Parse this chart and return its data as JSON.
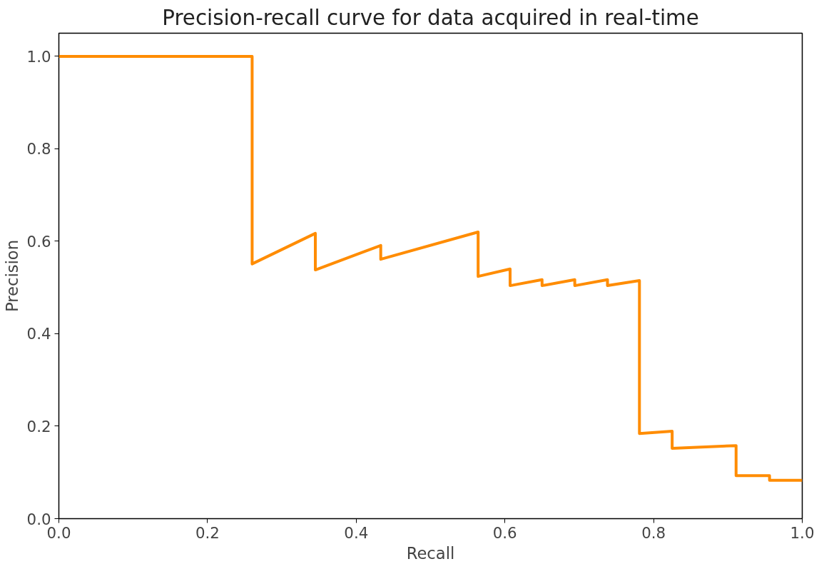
{
  "chart_data": {
    "type": "line",
    "title": "Precision-recall curve for data acquired in real-time",
    "xlabel": "Recall",
    "ylabel": "Precision",
    "x": [
      0.0,
      0.26,
      0.26,
      0.345,
      0.345,
      0.433,
      0.433,
      0.564,
      0.564,
      0.607,
      0.607,
      0.65,
      0.65,
      0.694,
      0.694,
      0.738,
      0.738,
      0.781,
      0.781,
      0.825,
      0.825,
      0.911,
      0.911,
      0.956,
      0.956,
      1.0
    ],
    "series": [
      {
        "color": "#ff8c00",
        "values": [
          1.0,
          1.0,
          0.551,
          0.617,
          0.538,
          0.591,
          0.561,
          0.62,
          0.524,
          0.54,
          0.504,
          0.517,
          0.504,
          0.517,
          0.504,
          0.517,
          0.504,
          0.515,
          0.184,
          0.189,
          0.152,
          0.158,
          0.093,
          0.093,
          0.083,
          0.083
        ]
      }
    ],
    "xlim": [
      0.0,
      1.0
    ],
    "ylim": [
      0.0,
      1.05
    ],
    "xticks": [
      {
        "value": 0,
        "label": "0.0"
      },
      0.2,
      0.4,
      0.6,
      0.8,
      {
        "value": 1,
        "label": "1.0"
      }
    ],
    "yticks": [
      {
        "value": 0,
        "label": "0.0"
      },
      0.2,
      0.4,
      0.6,
      0.8,
      {
        "value": 1,
        "label": "1.0"
      }
    ],
    "grid": false,
    "marker": "none",
    "line_style": "solid"
  }
}
